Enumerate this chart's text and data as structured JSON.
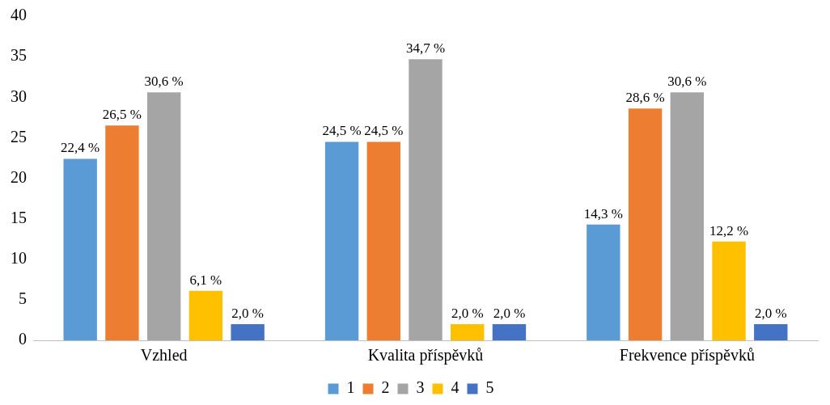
{
  "chart_data": {
    "type": "bar",
    "categories": [
      "Vzhled",
      "Kvalita příspěvků",
      "Frekvence příspěvků"
    ],
    "series": [
      {
        "name": "1",
        "color": "#5b9bd5",
        "values": [
          22.4,
          24.5,
          14.3
        ],
        "value_labels": [
          "22,4 %",
          "24,5 %",
          "14,3 %"
        ]
      },
      {
        "name": "2",
        "color": "#ed7d31",
        "values": [
          26.5,
          24.5,
          28.6
        ],
        "value_labels": [
          "26,5 %",
          "24,5 %",
          "28,6 %"
        ]
      },
      {
        "name": "3",
        "color": "#a5a5a5",
        "values": [
          30.6,
          34.7,
          30.6
        ],
        "value_labels": [
          "30,6 %",
          "34,7 %",
          "30,6 %"
        ]
      },
      {
        "name": "4",
        "color": "#ffc000",
        "values": [
          6.1,
          2.0,
          12.2
        ],
        "value_labels": [
          "6,1 %",
          "2,0 %",
          "12,2 %"
        ]
      },
      {
        "name": "5",
        "color": "#4472c4",
        "values": [
          2.0,
          2.0,
          2.0
        ],
        "value_labels": [
          "2,0 %",
          "2,0 %",
          "2,0 %"
        ]
      }
    ],
    "ylim": [
      0,
      40
    ],
    "yticks": [
      0,
      5,
      10,
      15,
      20,
      25,
      30,
      35,
      40
    ],
    "grid": false,
    "legend": "bottom"
  }
}
